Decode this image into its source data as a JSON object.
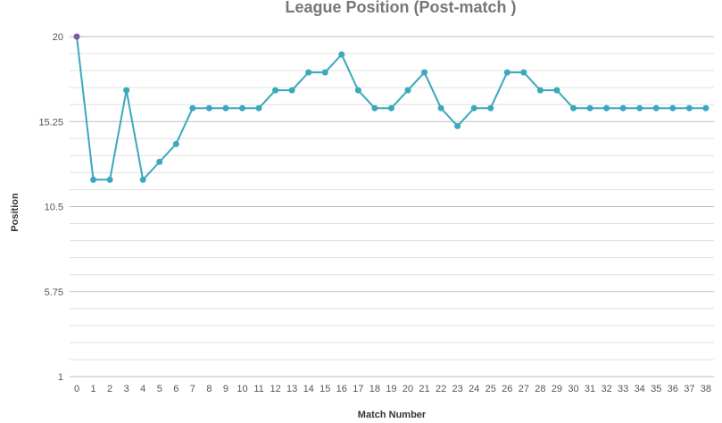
{
  "chart_data": {
    "type": "line",
    "title": "League Position (Post-match )",
    "xlabel": "Match Number",
    "ylabel": "Position",
    "x": [
      0,
      1,
      2,
      3,
      4,
      5,
      6,
      7,
      8,
      9,
      10,
      11,
      12,
      13,
      14,
      15,
      16,
      17,
      18,
      19,
      20,
      21,
      22,
      23,
      24,
      25,
      26,
      27,
      28,
      29,
      30,
      31,
      32,
      33,
      34,
      35,
      36,
      37,
      38
    ],
    "series": [
      {
        "values": [
          20,
          12,
          12,
          17,
          12,
          13,
          14,
          16,
          16,
          16,
          16,
          16,
          17,
          17,
          18,
          18,
          19,
          17,
          16,
          16,
          17,
          18,
          16,
          15,
          16,
          16,
          18,
          18,
          17,
          17,
          16,
          16,
          16,
          16,
          16,
          16,
          16,
          16,
          16
        ],
        "color": "#3aa8bd",
        "first_point_color": "#7b5aa6"
      }
    ],
    "xlim": [
      0,
      38
    ],
    "ylim": [
      1,
      20
    ],
    "y_ticks": [
      "20",
      "15.25",
      "10.5",
      "5.75",
      "1"
    ],
    "grid": true,
    "legend": "none"
  }
}
